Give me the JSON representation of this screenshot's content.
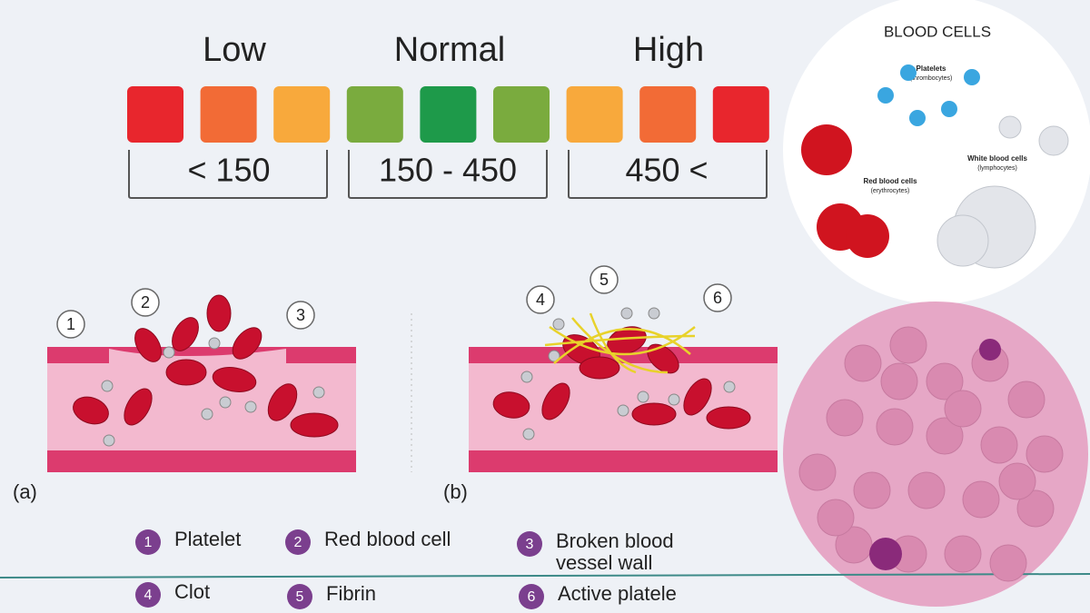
{
  "scale": {
    "groups": [
      {
        "label": "Low",
        "range": "< 150"
      },
      {
        "label": "Normal",
        "range": "150 - 450"
      },
      {
        "label": "High",
        "range": "450 <"
      }
    ]
  },
  "blood_cells": {
    "title": "BLOOD CELLS",
    "platelets": [
      "Platelets",
      "(thrombocytes)"
    ],
    "white": [
      "White blood cells",
      "(lymphocytes)"
    ],
    "red": [
      "Red blood cells",
      "(erythrocytes)"
    ]
  },
  "panel_a": {
    "label": "(a)",
    "callouts": [
      1,
      2,
      3
    ]
  },
  "panel_b": {
    "label": "(b)",
    "callouts": [
      4,
      5,
      6
    ]
  },
  "legend": [
    {
      "number": 1,
      "label": [
        "Platelet"
      ]
    },
    {
      "number": 2,
      "label": [
        "Red blood cell"
      ]
    },
    {
      "number": 3,
      "label": [
        "Broken blood",
        "vessel wall"
      ]
    },
    {
      "number": 4,
      "label": [
        "Clot"
      ]
    },
    {
      "number": 5,
      "label": [
        "Fibrin"
      ]
    },
    {
      "number": 6,
      "label": [
        "Active platele"
      ]
    }
  ]
}
